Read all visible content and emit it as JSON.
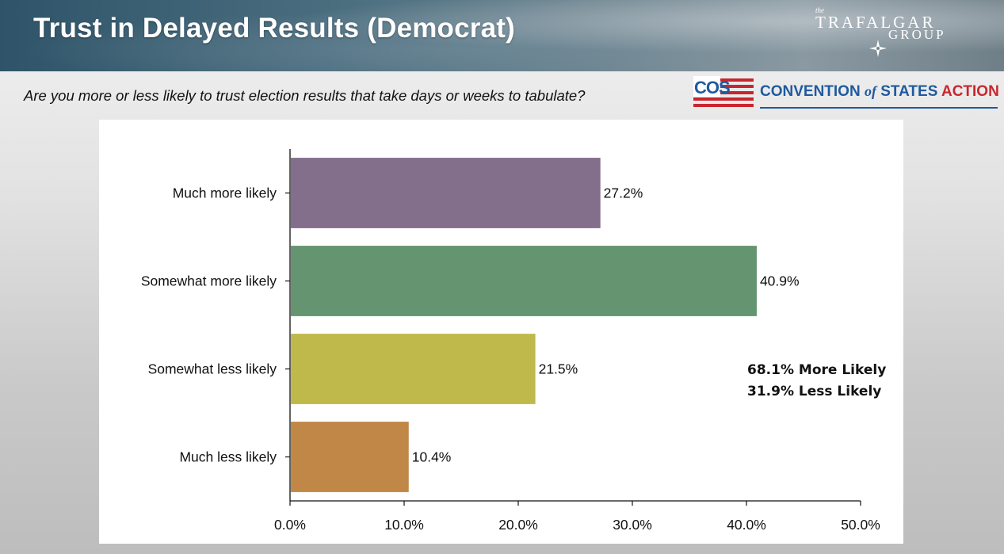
{
  "slide": {
    "title": "Trust in Delayed Results (Democrat)",
    "question": "Are you more or less likely to trust election results that take days or weeks to tabulate?"
  },
  "brand": {
    "the": "the",
    "line1": "TRAFALGAR",
    "line2": "GROUP"
  },
  "sponsor": {
    "mark": "COS",
    "name_part1": "CONVENTION",
    "name_of": "of",
    "name_part2": "STATES",
    "name_part3": "ACTION",
    "colors": {
      "blue": "#1f5a9e",
      "red": "#c8262e"
    }
  },
  "summary": {
    "line1": "68.1% More Likely",
    "line2": "31.9% Less Likely"
  },
  "chart_data": {
    "type": "bar",
    "orientation": "horizontal",
    "categories": [
      "Much more likely",
      "Somewhat more likely",
      "Somewhat less likely",
      "Much less likely"
    ],
    "values": [
      27.2,
      40.9,
      21.5,
      10.4
    ],
    "value_labels": [
      "27.2%",
      "40.9%",
      "21.5%",
      "10.4%"
    ],
    "colors": [
      "#836e8b",
      "#649570",
      "#bfb94b",
      "#c08746"
    ],
    "xlim": [
      0,
      50
    ],
    "xticks": [
      0,
      10,
      20,
      30,
      40,
      50
    ],
    "xtick_labels": [
      "0.0%",
      "10.0%",
      "20.0%",
      "30.0%",
      "40.0%",
      "50.0%"
    ],
    "xlabel": "",
    "ylabel": "",
    "grid": false,
    "legend": "none"
  }
}
